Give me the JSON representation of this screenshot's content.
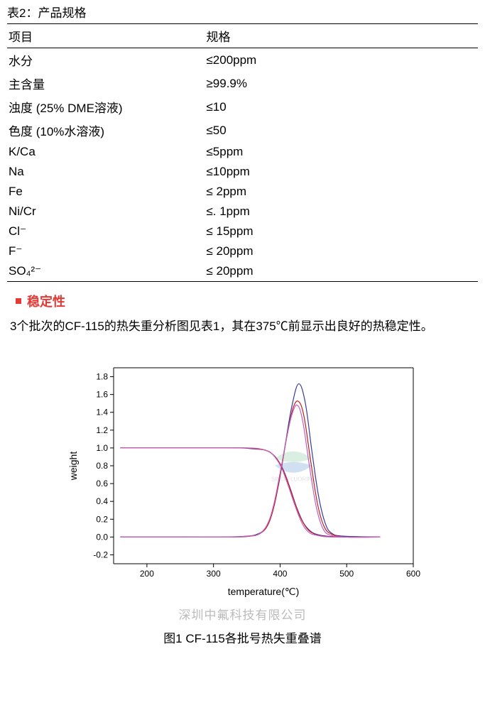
{
  "table": {
    "title": "表2：产品规格",
    "headers": [
      "项目",
      "规格"
    ],
    "rows": [
      {
        "c0": "水分",
        "c1": "≤200ppm"
      },
      {
        "c0": "主含量",
        "c1": "≥99.9%"
      },
      {
        "c0": "浊度  (25% DME溶液)",
        "c1": "≤10"
      },
      {
        "c0": "色度  (10%水溶液)",
        "c1": "≤50"
      },
      {
        "c0": "K/Ca",
        "c1": "≤5ppm"
      },
      {
        "c0": "Na",
        "c1": "≤10ppm"
      },
      {
        "c0": "Fe",
        "c1": "≤  2ppm"
      },
      {
        "c0": "Ni/Cr",
        "c1": "≤. 1ppm"
      },
      {
        "c0": "Cl⁻",
        "c1": "≤  15ppm"
      },
      {
        "c0": "F⁻",
        "c1": "≤  20ppm"
      },
      {
        "c0": "SO₄²⁻",
        "c1": "≤  20ppm"
      }
    ]
  },
  "section": {
    "title": "稳定性",
    "body": "3个批次的CF-115的热失重分析图见表1，其在375℃前显示出良好的热稳定性。"
  },
  "chart": {
    "type": "line",
    "x_label": "temperature(℃)",
    "y_label": "weight",
    "xlim": [
      150,
      600
    ],
    "ylim": [
      -0.3,
      1.9
    ],
    "x_ticks": [
      200,
      300,
      400,
      500,
      600
    ],
    "y_ticks": [
      -0.2,
      0.0,
      0.2,
      0.4,
      0.6,
      0.8,
      1.0,
      1.2,
      1.4,
      1.6,
      1.8
    ],
    "axis_color": "#000000",
    "line_width": 1.2,
    "series": [
      {
        "color": "#3a3a9f",
        "points": [
          [
            160,
            1.0
          ],
          [
            200,
            1.0
          ],
          [
            250,
            1.0
          ],
          [
            300,
            1.0
          ],
          [
            340,
            1.0
          ],
          [
            360,
            0.99
          ],
          [
            375,
            0.98
          ],
          [
            385,
            0.95
          ],
          [
            395,
            0.88
          ],
          [
            405,
            0.75
          ],
          [
            415,
            0.55
          ],
          [
            425,
            0.33
          ],
          [
            435,
            0.16
          ],
          [
            445,
            0.07
          ],
          [
            455,
            0.03
          ],
          [
            470,
            0.01
          ],
          [
            500,
            0.0
          ],
          [
            550,
            0.0
          ]
        ]
      },
      {
        "color": "#c02020",
        "points": [
          [
            160,
            1.0
          ],
          [
            200,
            1.0
          ],
          [
            250,
            1.0
          ],
          [
            300,
            1.0
          ],
          [
            345,
            1.0
          ],
          [
            365,
            0.99
          ],
          [
            380,
            0.97
          ],
          [
            390,
            0.92
          ],
          [
            400,
            0.82
          ],
          [
            410,
            0.65
          ],
          [
            420,
            0.43
          ],
          [
            430,
            0.23
          ],
          [
            440,
            0.1
          ],
          [
            450,
            0.04
          ],
          [
            465,
            0.01
          ],
          [
            500,
            0.0
          ],
          [
            550,
            0.0
          ]
        ]
      },
      {
        "color": "#c060c0",
        "points": [
          [
            160,
            1.0
          ],
          [
            200,
            1.0
          ],
          [
            250,
            1.0
          ],
          [
            300,
            1.0
          ],
          [
            350,
            1.0
          ],
          [
            370,
            0.99
          ],
          [
            383,
            0.96
          ],
          [
            392,
            0.9
          ],
          [
            402,
            0.78
          ],
          [
            412,
            0.58
          ],
          [
            422,
            0.36
          ],
          [
            432,
            0.17
          ],
          [
            442,
            0.06
          ],
          [
            455,
            0.02
          ],
          [
            480,
            0.0
          ],
          [
            550,
            0.0
          ]
        ]
      },
      {
        "color": "#3a3a9f",
        "points": [
          [
            160,
            0.0
          ],
          [
            250,
            0.0
          ],
          [
            320,
            0.0
          ],
          [
            350,
            0.01
          ],
          [
            365,
            0.03
          ],
          [
            378,
            0.1
          ],
          [
            388,
            0.28
          ],
          [
            398,
            0.6
          ],
          [
            408,
            1.05
          ],
          [
            418,
            1.48
          ],
          [
            428,
            1.72
          ],
          [
            438,
            1.5
          ],
          [
            448,
            0.95
          ],
          [
            458,
            0.45
          ],
          [
            468,
            0.15
          ],
          [
            478,
            0.04
          ],
          [
            495,
            0.01
          ],
          [
            550,
            0.0
          ]
        ]
      },
      {
        "color": "#c02020",
        "points": [
          [
            160,
            0.0
          ],
          [
            250,
            0.0
          ],
          [
            330,
            0.0
          ],
          [
            355,
            0.01
          ],
          [
            370,
            0.04
          ],
          [
            382,
            0.14
          ],
          [
            392,
            0.38
          ],
          [
            402,
            0.78
          ],
          [
            412,
            1.2
          ],
          [
            420,
            1.46
          ],
          [
            428,
            1.52
          ],
          [
            436,
            1.35
          ],
          [
            446,
            0.85
          ],
          [
            456,
            0.38
          ],
          [
            466,
            0.12
          ],
          [
            478,
            0.03
          ],
          [
            500,
            0.0
          ],
          [
            550,
            0.0
          ]
        ]
      },
      {
        "color": "#c060c0",
        "points": [
          [
            160,
            0.0
          ],
          [
            250,
            0.0
          ],
          [
            325,
            0.0
          ],
          [
            352,
            0.01
          ],
          [
            367,
            0.03
          ],
          [
            380,
            0.13
          ],
          [
            390,
            0.35
          ],
          [
            400,
            0.72
          ],
          [
            410,
            1.12
          ],
          [
            418,
            1.38
          ],
          [
            426,
            1.48
          ],
          [
            434,
            1.3
          ],
          [
            444,
            0.8
          ],
          [
            454,
            0.35
          ],
          [
            464,
            0.1
          ],
          [
            476,
            0.02
          ],
          [
            500,
            0.0
          ],
          [
            550,
            0.0
          ]
        ]
      }
    ]
  },
  "caption": {
    "watermark": "深圳中氟科技有限公司",
    "text": "图1   CF-115各批号热失重叠谱"
  },
  "watermark_logo": {
    "text": "SINO-FLUORINE",
    "top_color": "#6fbf8a",
    "bottom_color": "#4a88c8"
  }
}
